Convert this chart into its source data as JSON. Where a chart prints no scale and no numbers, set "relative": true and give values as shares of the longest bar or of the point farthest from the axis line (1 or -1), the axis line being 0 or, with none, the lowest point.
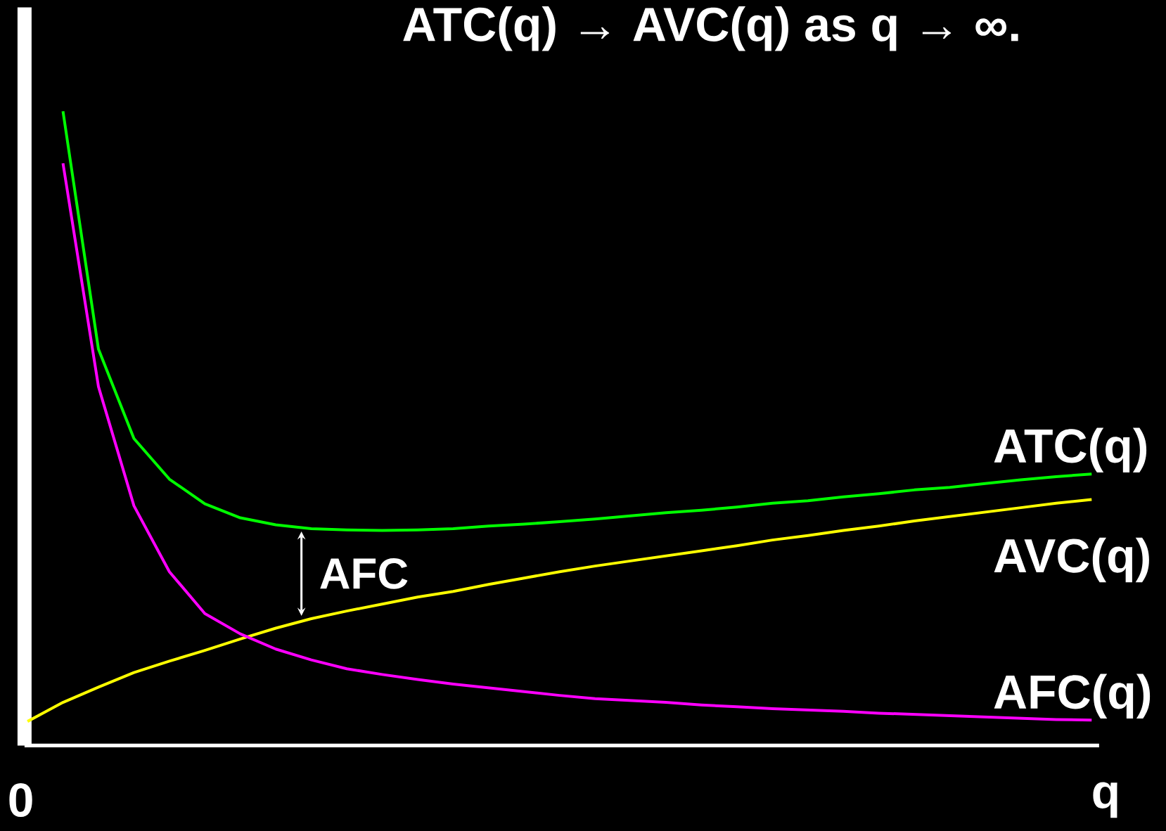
{
  "chart_data": {
    "type": "line",
    "title": "ATC(q) → AVC(q) as q → ∞.",
    "xlabel": "q",
    "relative": true,
    "legend": false,
    "categories": [
      null,
      null,
      null,
      null,
      null,
      null,
      null,
      null,
      null,
      null,
      null,
      null,
      null,
      null,
      null,
      null,
      null,
      null,
      null,
      null,
      null,
      null,
      null,
      null,
      null,
      null,
      null,
      null,
      null,
      null,
      null
    ],
    "series": [
      {
        "name": "ATC(q)",
        "color": "#00ff00",
        "values": [
          null,
          1.0,
          0.625,
          0.484,
          0.42,
          0.381,
          0.359,
          0.348,
          0.342,
          0.34,
          0.339,
          0.34,
          0.342,
          0.346,
          0.349,
          0.353,
          0.357,
          0.362,
          0.367,
          0.371,
          0.376,
          0.382,
          0.386,
          0.392,
          0.397,
          0.403,
          0.407,
          0.413,
          0.419,
          0.424,
          0.428
        ]
      },
      {
        "name": "AVC(q)",
        "color": "#ffff00",
        "values": [
          0.038,
          0.068,
          0.092,
          0.115,
          0.133,
          0.15,
          0.168,
          0.185,
          0.2,
          0.212,
          0.223,
          0.234,
          0.243,
          0.254,
          0.264,
          0.274,
          0.283,
          0.291,
          0.299,
          0.307,
          0.315,
          0.324,
          0.331,
          0.339,
          0.346,
          0.354,
          0.361,
          0.368,
          0.375,
          0.382,
          0.388
        ]
      },
      {
        "name": "AFC(q)",
        "color": "#ff00ff",
        "values": [
          null,
          0.918,
          0.566,
          0.378,
          0.274,
          0.208,
          0.176,
          0.152,
          0.135,
          0.121,
          0.112,
          0.104,
          0.097,
          0.091,
          0.085,
          0.079,
          0.074,
          0.071,
          0.068,
          0.064,
          0.061,
          0.058,
          0.056,
          0.054,
          0.051,
          0.049,
          0.047,
          0.045,
          0.043,
          0.041,
          0.04
        ]
      }
    ],
    "annotations": [
      "AFC",
      "0"
    ]
  }
}
